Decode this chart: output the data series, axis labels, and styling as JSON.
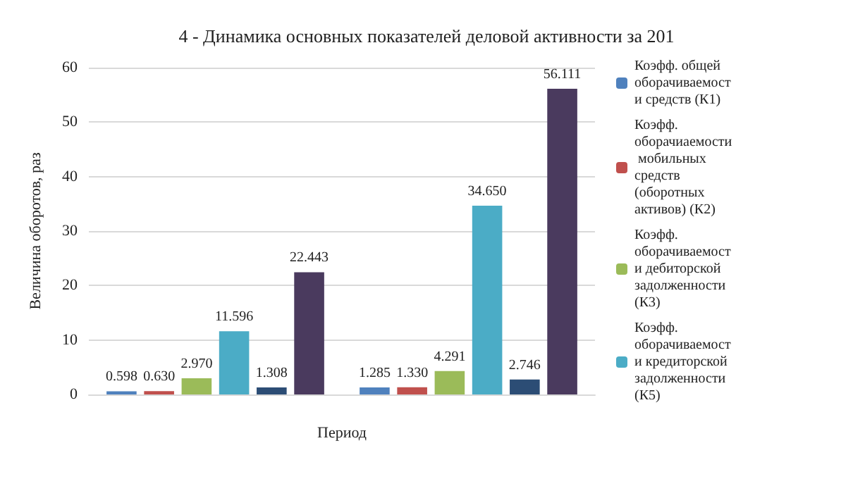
{
  "chart_data": {
    "type": "bar",
    "title": "4 - Динамика основных показателей деловой активности за 201",
    "xlabel": "Период",
    "ylabel": "Величина оборотов, раз",
    "categories": [
      null,
      null
    ],
    "series": [
      {
        "name": "Коэфф. общей оборачиваемости средств (К1)",
        "color": "#4f81bd",
        "values": [
          0.598,
          1.285
        ],
        "value_labels": [
          "0.598",
          "1.285"
        ]
      },
      {
        "name": "Коэфф. оборачиаемости мобильных средств (оборотных активов) (К2)",
        "color": "#c0504d",
        "values": [
          0.63,
          1.33
        ],
        "value_labels": [
          "0.630",
          "1.330"
        ]
      },
      {
        "name": "Коэфф. оборачиваемости дебиторской задолженности (К3)",
        "color": "#9bbb59",
        "values": [
          2.97,
          4.291
        ],
        "value_labels": [
          "2.970",
          "4.291"
        ]
      },
      {
        "name": "Коэфф. оборачиваемости кредиторской задолженности (К5)",
        "color": "#4bacc6",
        "values": [
          11.596,
          34.65
        ],
        "value_labels": [
          "11.596",
          "34.650"
        ]
      },
      {
        "color": "#2c4d75",
        "values": [
          1.308,
          2.746
        ],
        "value_labels": [
          "1.308",
          "2.746"
        ]
      },
      {
        "color": "#4a3a5e",
        "values": [
          22.443,
          56.111
        ],
        "value_labels": [
          "22.443",
          "56.111"
        ]
      }
    ],
    "ylim": [
      0,
      60
    ],
    "yticks": [
      0,
      10,
      20,
      30,
      40,
      50,
      60
    ],
    "grid": "y",
    "legend": "right"
  }
}
